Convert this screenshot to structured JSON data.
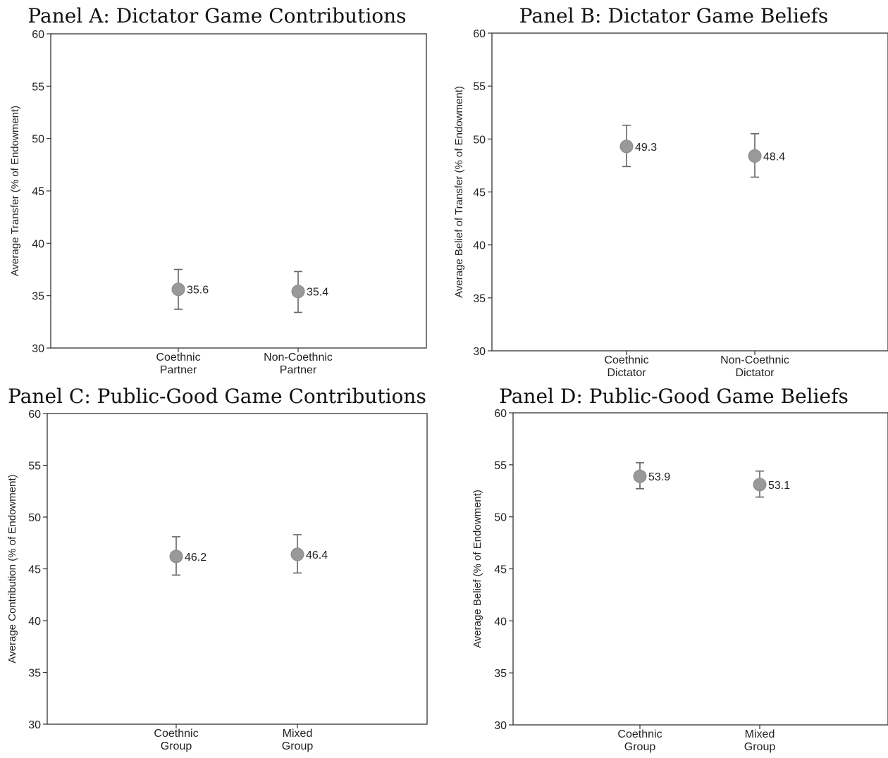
{
  "chart_data": [
    {
      "type": "scatter",
      "title": "Panel A: Dictator Game Contributions",
      "ylabel": "Average Transfer (% of Endowment)",
      "ylim": [
        30,
        60
      ],
      "yticks": [
        30,
        35,
        40,
        45,
        50,
        55,
        60
      ],
      "categories": [
        [
          "Coethnic",
          "Partner"
        ],
        [
          "Non-Coethnic",
          "Partner"
        ]
      ],
      "values": [
        35.6,
        35.4
      ],
      "value_labels": [
        "35.6",
        "35.4"
      ],
      "ci": [
        [
          33.7,
          37.5
        ],
        [
          33.4,
          37.3
        ]
      ],
      "marker_color": "#999999",
      "grid": false
    },
    {
      "type": "scatter",
      "title": "Panel B: Dictator Game Beliefs",
      "ylabel": "Average Belief of Transfer (% of Endowment)",
      "ylim": [
        30,
        60
      ],
      "yticks": [
        30,
        35,
        40,
        45,
        50,
        55,
        60
      ],
      "categories": [
        [
          "Coethnic",
          "Dictator"
        ],
        [
          "Non-Coethnic",
          "Dictator"
        ]
      ],
      "values": [
        49.3,
        48.4
      ],
      "value_labels": [
        "49.3",
        "48.4"
      ],
      "ci": [
        [
          47.4,
          51.3
        ],
        [
          46.4,
          50.5
        ]
      ],
      "marker_color": "#999999",
      "grid": false
    },
    {
      "type": "scatter",
      "title": "Panel C: Public-Good Game Contributions",
      "ylabel": "Average Contribution (% of Endowment)",
      "ylim": [
        30,
        60
      ],
      "yticks": [
        30,
        35,
        40,
        45,
        50,
        55,
        60
      ],
      "categories": [
        [
          "Coethnic",
          "Group"
        ],
        [
          "Mixed",
          "Group"
        ]
      ],
      "values": [
        46.2,
        46.4
      ],
      "value_labels": [
        "46.2",
        "46.4"
      ],
      "ci": [
        [
          44.4,
          48.1
        ],
        [
          44.6,
          48.3
        ]
      ],
      "marker_color": "#999999",
      "grid": false
    },
    {
      "type": "scatter",
      "title": "Panel D: Public-Good Game Beliefs",
      "ylabel": "Average Belief (% of Endowment)",
      "ylim": [
        30,
        60
      ],
      "yticks": [
        30,
        35,
        40,
        45,
        50,
        55,
        60
      ],
      "categories": [
        [
          "Coethnic",
          "Group"
        ],
        [
          "Mixed",
          "Group"
        ]
      ],
      "values": [
        53.9,
        53.1
      ],
      "value_labels": [
        "53.9",
        "53.1"
      ],
      "ci": [
        [
          52.7,
          55.2
        ],
        [
          51.9,
          54.4
        ]
      ],
      "marker_color": "#999999",
      "grid": false
    }
  ]
}
